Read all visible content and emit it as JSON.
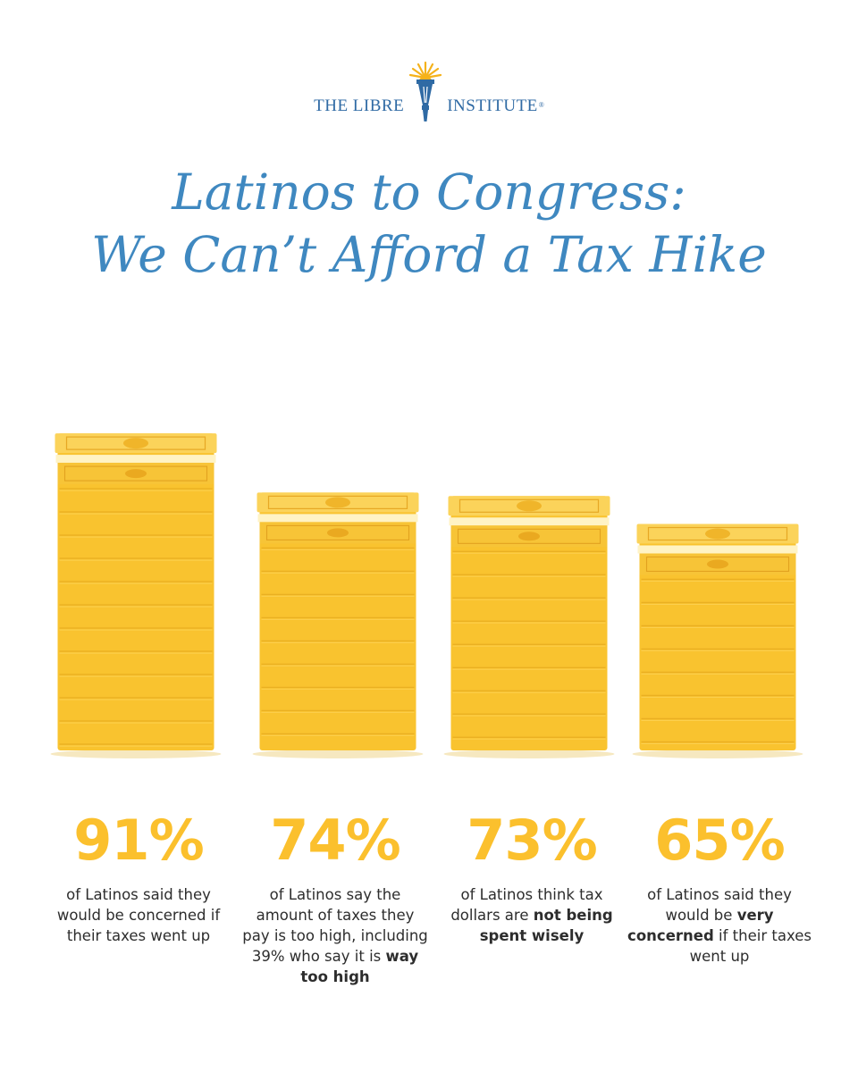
{
  "brand": {
    "left": "THE LIBRE",
    "right": "INSTITUTE",
    "mark": "®",
    "logo_icon": "torch-icon"
  },
  "headline": {
    "line1": "Latinos to Congress:",
    "line2": "We Can’t Afford a Tax Hike"
  },
  "colors": {
    "headline": "#3f88c0",
    "brand": "#2f6aa4",
    "accent": "#fbc02d",
    "stack": "#f9c32f",
    "text": "#2d2d2d"
  },
  "chart_data": {
    "type": "bar",
    "categories": [
      "91%",
      "74%",
      "73%",
      "65%"
    ],
    "values": [
      91,
      74,
      73,
      65
    ],
    "ylim": [
      0,
      100
    ],
    "grid": false,
    "bar_style": "stack-of-dollar-bills"
  },
  "stats": [
    {
      "value": "91%",
      "text_before": "of Latinos said they would be concerned if their taxes went up",
      "bold": "",
      "text_after": ""
    },
    {
      "value": "74%",
      "text_before": "of Latinos say the amount of taxes they pay is too high, including 39% who say it is",
      "bold": "way too high",
      "text_after": ""
    },
    {
      "value": "73%",
      "text_before": "of Latinos think tax dollars are",
      "bold": "not being spent wisely",
      "text_after": ""
    },
    {
      "value": "65%",
      "text_before": "of Latinos said they would be",
      "bold": "very concerned",
      "text_after": "if their taxes went up"
    }
  ]
}
